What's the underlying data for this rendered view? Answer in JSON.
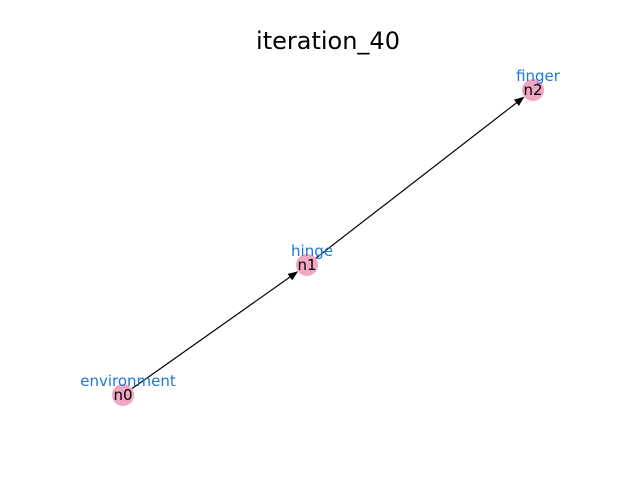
{
  "title": "iteration_40",
  "colors": {
    "node_fill": "#f1a7c4",
    "label_color": "#1f77d0",
    "edge_color": "#000000"
  },
  "nodes": [
    {
      "id": "n0",
      "label": "environment"
    },
    {
      "id": "n1",
      "label": "hinge"
    },
    {
      "id": "n2",
      "label": "finger"
    }
  ],
  "edges": [
    {
      "from": "n0",
      "to": "n1"
    },
    {
      "from": "n1",
      "to": "n2"
    }
  ]
}
